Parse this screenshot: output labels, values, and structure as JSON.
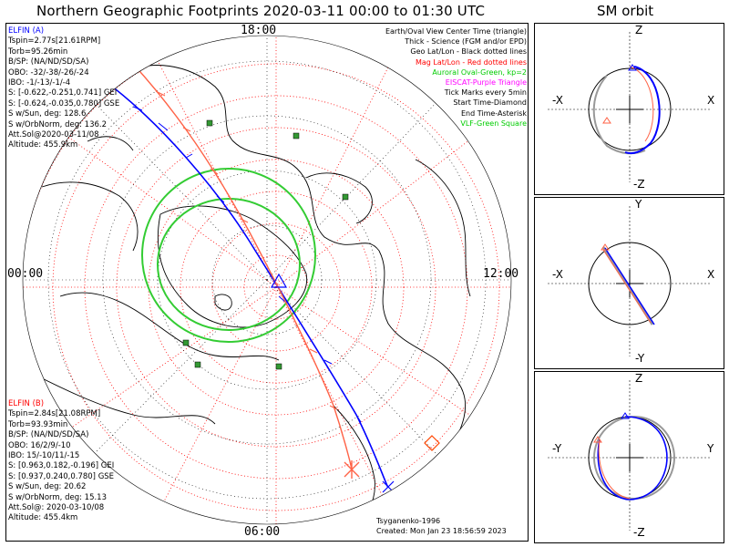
{
  "title": "Northern Geographic Footprints 2020-03-11 00:00 to 01:30 UTC",
  "sm_title": "SM orbit",
  "clock_labels": {
    "top": "18:00",
    "left": "00:00",
    "right": "12:00",
    "bottom": "06:00"
  },
  "elfin_a": {
    "color": "#0000ff",
    "lines": [
      "ELFIN (A)",
      "Tspin=2.77s[21.61RPM]",
      "Torb=95.26min",
      "B/SP: (NA/ND/SD/SA)",
      "OBO: -32/-38/-26/-24",
      "IBO: -1/-13/-1/-4",
      "S: [-0.622,-0.251,0.741] GEI",
      "S: [-0.624,-0.035,0.780] GSE",
      "S w/Sun, deg: 128.6",
      "S w/OrbNorm, deg: 136.2",
      "Att.Sol@2020-03-11/08",
      "Altitude: 455.9km"
    ]
  },
  "elfin_b": {
    "color": "#ff0000",
    "lines": [
      "ELFIN (B)",
      "Tspin=2.84s[21.08RPM]",
      "Torb=93.93min",
      "B/SP: (NA/ND/SD/SA)",
      "OBO: 16/2/9/-10",
      "IBO: 15/-10/11/-15",
      "S: [0.963,0.182,-0.196] GEI",
      "S: [0.937,0.240,0.780] GSE",
      "S w/Sun, deg: 20.62",
      "S w/OrbNorm, deg: 15.13",
      "Att.Sol@: 2020-03-10/08",
      "Altitude: 455.4km"
    ]
  },
  "legend": [
    {
      "text": "Earth/Oval View Center Time (triangle)",
      "color": "#000000"
    },
    {
      "text": "Thick - Science (FGM and/or EPD)",
      "color": "#000000"
    },
    {
      "text": "Geo Lat/Lon - Black dotted lines",
      "color": "#000000"
    },
    {
      "text": "Mag Lat/Lon - Red dotted lines",
      "color": "#ff0000"
    },
    {
      "text": "Auroral Oval-Green, kp=2",
      "color": "#00cc00"
    },
    {
      "text": "EISCAT-Purple Triangle",
      "color": "#ff00ff"
    },
    {
      "text": "Tick Marks every 5min",
      "color": "#000000"
    },
    {
      "text": "Start Time-Diamond",
      "color": "#000000"
    },
    {
      "text": "End Time-Asterisk",
      "color": "#000000"
    },
    {
      "text": "VLF-Green Square",
      "color": "#00cc00"
    }
  ],
  "credits": [
    "Tsyganenko-1996",
    "Created: Mon Jan 23 18:56:59 2023"
  ],
  "sm_panels": [
    {
      "top": "Z",
      "bottom": "-Z",
      "left": "-X",
      "right": "X"
    },
    {
      "top": "Y",
      "bottom": "-Y",
      "left": "-X",
      "right": "X"
    },
    {
      "top": "Z",
      "bottom": "-Z",
      "left": "-Y",
      "right": "Y"
    }
  ],
  "colors": {
    "elfin_a": "#0000ff",
    "elfin_b": "#ff6347",
    "oval": "#33cc33",
    "grid_mag": "#ff0000",
    "vlf": "#339933"
  }
}
